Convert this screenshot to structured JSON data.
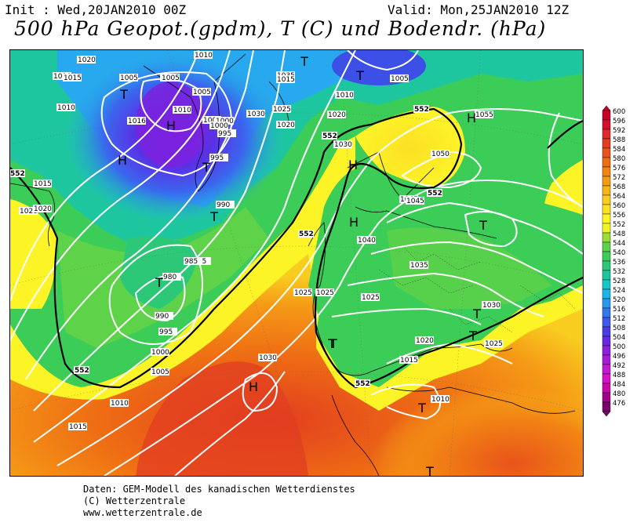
{
  "header": {
    "init": "Init : Wed,20JAN2010 00Z",
    "valid": "Valid: Mon,25JAN2010 12Z",
    "title": "500 hPa Geopot.(gpdm), T (C) und Bodendr. (hPa)"
  },
  "footer": {
    "line1": "Daten: GEM-Modell des kanadischen Wetterdienstes",
    "line2": "(C) Wetterzentrale",
    "line3": "www.wetterzentrale.de"
  },
  "legend": {
    "values": [
      "600",
      "596",
      "592",
      "588",
      "584",
      "580",
      "576",
      "572",
      "568",
      "564",
      "560",
      "556",
      "552",
      "548",
      "544",
      "540",
      "536",
      "532",
      "528",
      "524",
      "520",
      "516",
      "512",
      "508",
      "504",
      "500",
      "496",
      "492",
      "488",
      "484",
      "480",
      "476"
    ],
    "colors": [
      "#c8002a",
      "#d4102e",
      "#de2a2a",
      "#e23d20",
      "#e8541a",
      "#ee6c14",
      "#f28414",
      "#f59a16",
      "#f7b418",
      "#f9cc20",
      "#fbe024",
      "#fdf428",
      "#f0f52a",
      "#9adc3a",
      "#5ed248",
      "#3ccc58",
      "#2cc878",
      "#1ec6a0",
      "#18c6c8",
      "#1cb6e6",
      "#2898f0",
      "#3478ee",
      "#4058ea",
      "#4c3ce6",
      "#6a28e2",
      "#8c20dc",
      "#a81cd8",
      "#c418d4",
      "#d810c8",
      "#c808a8",
      "#a00488",
      "#780468"
    ]
  },
  "symbols": [
    {
      "t": "T"
    },
    {
      "t": "T"
    },
    {
      "t": "T"
    },
    {
      "t": "T"
    },
    {
      "t": "H"
    },
    {
      "t": "H"
    },
    {
      "t": "T"
    },
    {
      "t": "T"
    },
    {
      "t": "H"
    },
    {
      "t": "H"
    },
    {
      "t": "H"
    },
    {
      "t": "T"
    },
    {
      "t": "T"
    },
    {
      "t": "T"
    },
    {
      "t": "H"
    },
    {
      "t": "T"
    },
    {
      "t": "T"
    },
    {
      "t": "T"
    },
    {
      "t": "T"
    }
  ],
  "isobar_labels": [
    "1020",
    "1010",
    "1005",
    "1005",
    "1015",
    "1010",
    "1010",
    "1016",
    "1010",
    "1005",
    "1005",
    "1000",
    "1030",
    "1000",
    "1035",
    "995",
    "1015",
    "1020",
    "1025",
    "1020",
    "995",
    "1000",
    "1010",
    "1005",
    "1045",
    "1020",
    "1030",
    "1055",
    "1050",
    "1045",
    "985",
    "990",
    "980",
    "1015",
    "1020",
    "1025",
    "1040",
    "1025",
    "1035",
    "1025",
    "1030",
    "985",
    "980",
    "990",
    "995",
    "1000",
    "1005",
    "1010",
    "1015",
    "1030",
    "1025",
    "1020",
    "1015",
    "1010",
    "1025",
    "1015"
  ],
  "geopot_labels": [
    "552",
    "552",
    "552",
    "552",
    "552",
    "552",
    "552"
  ]
}
